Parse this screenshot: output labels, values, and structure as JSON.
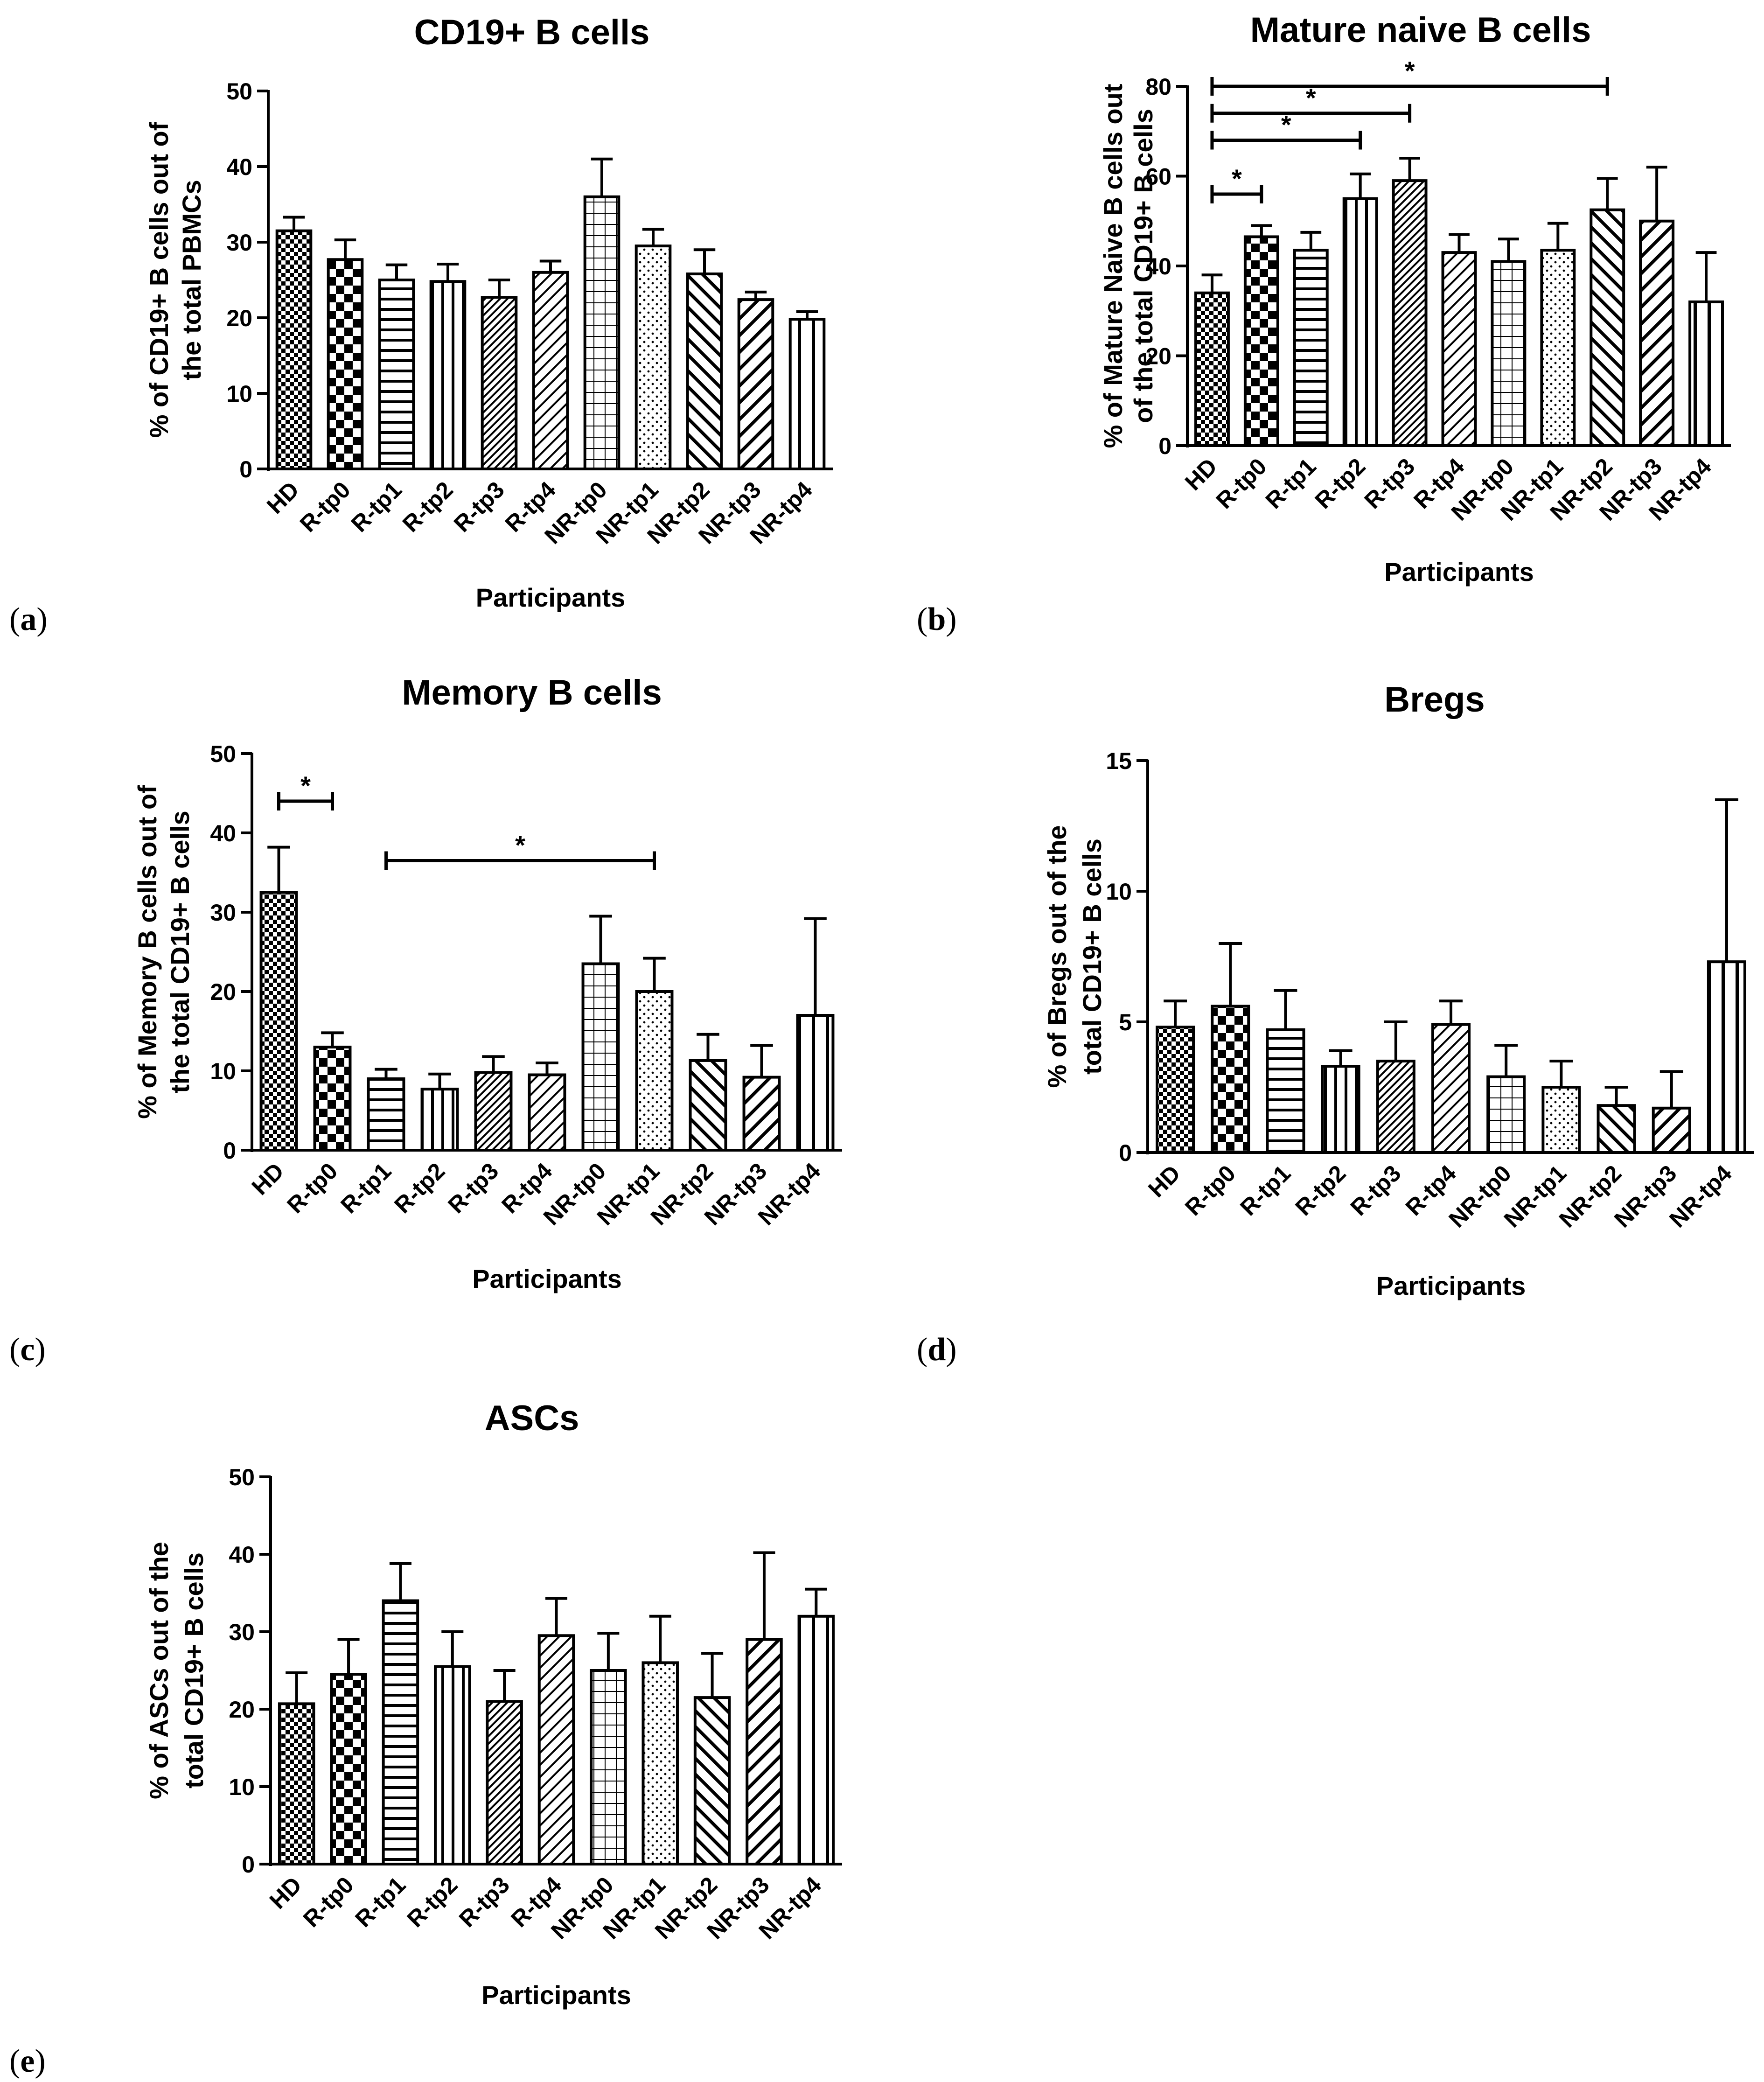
{
  "panels": [
    {
      "label": "a",
      "chart_data": {
        "type": "bar",
        "title": "CD19+ B cells",
        "xlabel": "Participants",
        "ylabel_lines": [
          "% of CD19+ B cells out of",
          "the total PBMCs"
        ],
        "ylim": [
          0,
          50
        ],
        "yticks": [
          "0",
          "10",
          "20",
          "30",
          "40",
          "50"
        ],
        "categories": [
          "HD",
          "R-tp0",
          "R-tp1",
          "R-tp2",
          "R-tp3",
          "R-tp4",
          "NR-tp0",
          "NR-tp1",
          "NR-tp2",
          "NR-tp3",
          "NR-tp4"
        ],
        "values": [
          31.5,
          27.7,
          25.0,
          24.8,
          22.7,
          26.0,
          36.0,
          29.5,
          25.8,
          22.4,
          19.8
        ],
        "errors": [
          1.8,
          2.6,
          2.0,
          2.3,
          2.3,
          1.5,
          5.0,
          2.2,
          3.2,
          1.0,
          1.0
        ],
        "significance": []
      }
    },
    {
      "label": "b",
      "chart_data": {
        "type": "bar",
        "title": "Mature naive B cells",
        "xlabel": "Participants",
        "ylabel_lines": [
          "% of Mature Naive B cells out",
          "of the total CD19+ B cells"
        ],
        "ylim": [
          0,
          80
        ],
        "yticks": [
          "0",
          "20",
          "40",
          "60",
          "80"
        ],
        "categories": [
          "HD",
          "R-tp0",
          "R-tp1",
          "R-tp2",
          "R-tp3",
          "R-tp4",
          "NR-tp0",
          "NR-tp1",
          "NR-tp2",
          "NR-tp3",
          "NR-tp4"
        ],
        "values": [
          34.0,
          46.5,
          43.5,
          55.0,
          59.0,
          43.0,
          41.0,
          43.5,
          52.5,
          50.0,
          32.0
        ],
        "errors": [
          4.0,
          2.5,
          4.0,
          5.5,
          5.0,
          4.0,
          5.0,
          6.0,
          7.0,
          12.0,
          11.0
        ],
        "significance": [
          {
            "from": 0,
            "to": 1,
            "value": 56,
            "label": "*"
          },
          {
            "from": 0,
            "to": 3,
            "value": 68,
            "label": "*"
          },
          {
            "from": 0,
            "to": 4,
            "value": 74,
            "label": "*"
          },
          {
            "from": 0,
            "to": 8,
            "value": 80,
            "label": "*"
          }
        ]
      }
    },
    {
      "label": "c",
      "chart_data": {
        "type": "bar",
        "title": "Memory B cells",
        "xlabel": "Participants",
        "ylabel_lines": [
          "% of Memory B cells out of",
          "the total CD19+ B cells"
        ],
        "ylim": [
          0,
          50
        ],
        "yticks": [
          "0",
          "10",
          "20",
          "30",
          "40",
          "50"
        ],
        "categories": [
          "HD",
          "R-tp0",
          "R-tp1",
          "R-tp2",
          "R-tp3",
          "R-tp4",
          "NR-tp0",
          "NR-tp1",
          "NR-tp2",
          "NR-tp3",
          "NR-tp4"
        ],
        "values": [
          32.5,
          13.0,
          9.0,
          7.7,
          9.8,
          9.5,
          23.5,
          20.0,
          11.3,
          9.2,
          17.0
        ],
        "errors": [
          5.7,
          1.8,
          1.2,
          1.9,
          2.0,
          1.5,
          6.0,
          4.2,
          3.3,
          4.0,
          12.2
        ],
        "significance": [
          {
            "from": 0,
            "to": 1,
            "value": 44,
            "label": "*"
          },
          {
            "from": 2,
            "to": 7,
            "value": 36.5,
            "label": "*"
          }
        ]
      }
    },
    {
      "label": "d",
      "chart_data": {
        "type": "bar",
        "title": "Bregs",
        "xlabel": "Participants",
        "ylabel_lines": [
          "% of Bregs out of the",
          "total CD19+ B cells"
        ],
        "ylim": [
          0,
          15
        ],
        "yticks": [
          "0",
          "5",
          "10",
          "15"
        ],
        "categories": [
          "HD",
          "R-tp0",
          "R-tp1",
          "R-tp2",
          "R-tp3",
          "R-tp4",
          "NR-tp0",
          "NR-tp1",
          "NR-tp2",
          "NR-tp3",
          "NR-tp4"
        ],
        "values": [
          4.8,
          5.6,
          4.7,
          3.3,
          3.5,
          4.9,
          2.9,
          2.5,
          1.8,
          1.7,
          7.3
        ],
        "errors": [
          1.0,
          2.4,
          1.5,
          0.6,
          1.5,
          0.9,
          1.2,
          1.0,
          0.7,
          1.4,
          6.2
        ],
        "significance": []
      }
    },
    {
      "label": "e",
      "chart_data": {
        "type": "bar",
        "title": "ASCs",
        "xlabel": "Participants",
        "ylabel_lines": [
          "% of ASCs out of the",
          "total CD19+ B cells"
        ],
        "ylim": [
          0,
          50
        ],
        "yticks": [
          "0",
          "10",
          "20",
          "30",
          "40",
          "50"
        ],
        "categories": [
          "HD",
          "R-tp0",
          "R-tp1",
          "R-tp2",
          "R-tp3",
          "R-tp4",
          "NR-tp0",
          "NR-tp1",
          "NR-tp2",
          "NR-tp3",
          "NR-tp4"
        ],
        "values": [
          20.7,
          24.5,
          34.0,
          25.5,
          21.0,
          29.5,
          25.0,
          26.0,
          21.5,
          29.0,
          32.0
        ],
        "errors": [
          4.0,
          4.5,
          4.8,
          4.5,
          4.0,
          4.8,
          4.8,
          6.0,
          5.7,
          11.2,
          3.5
        ],
        "significance": []
      }
    }
  ]
}
